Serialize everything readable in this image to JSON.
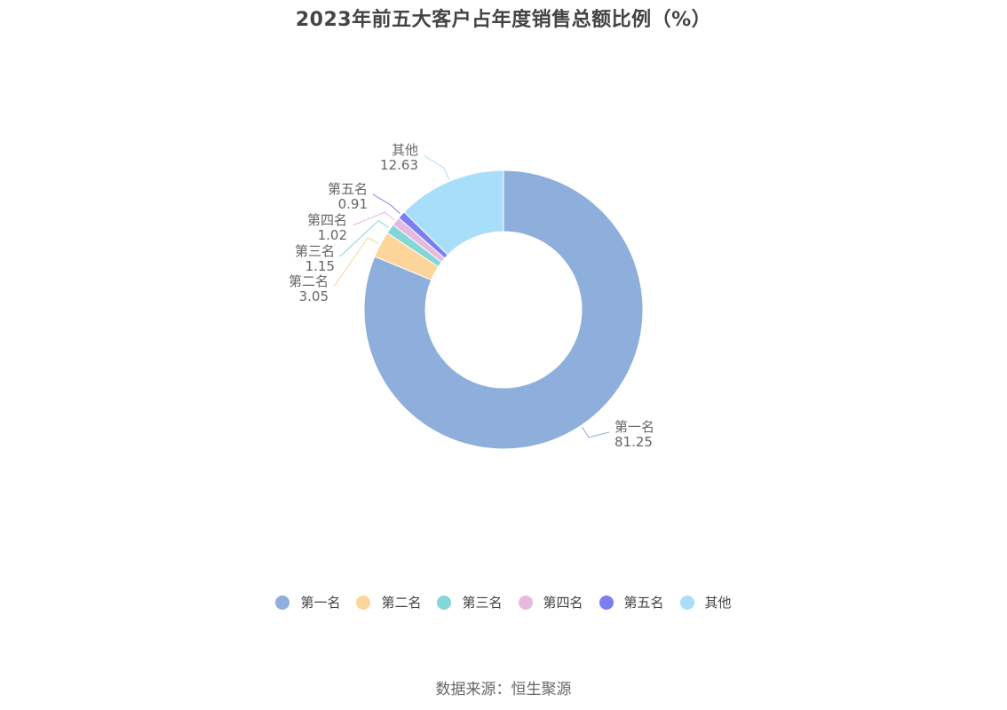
{
  "title": "2023年前五大客户占年度销售总额比例（%）",
  "source": "数据来源：恒生聚源",
  "chart_data": {
    "type": "pie",
    "donut": true,
    "title": "2023年前五大客户占年度销售总额比例（%）",
    "legend_position": "bottom",
    "slices": [
      {
        "name": "第一名",
        "value": 81.25,
        "label": "81.25",
        "color": "#8eaedc"
      },
      {
        "name": "第二名",
        "value": 3.05,
        "label": "3.05",
        "color": "#fdd49a"
      },
      {
        "name": "第三名",
        "value": 1.15,
        "label": "1.15",
        "color": "#85d6d6"
      },
      {
        "name": "第四名",
        "value": 1.02,
        "label": "1.02",
        "color": "#e8b9de"
      },
      {
        "name": "第五名",
        "value": 0.91,
        "label": "0.91",
        "color": "#7b7ef0"
      },
      {
        "name": "其他",
        "value": 12.63,
        "label": "12.63",
        "color": "#a9defa"
      }
    ]
  }
}
